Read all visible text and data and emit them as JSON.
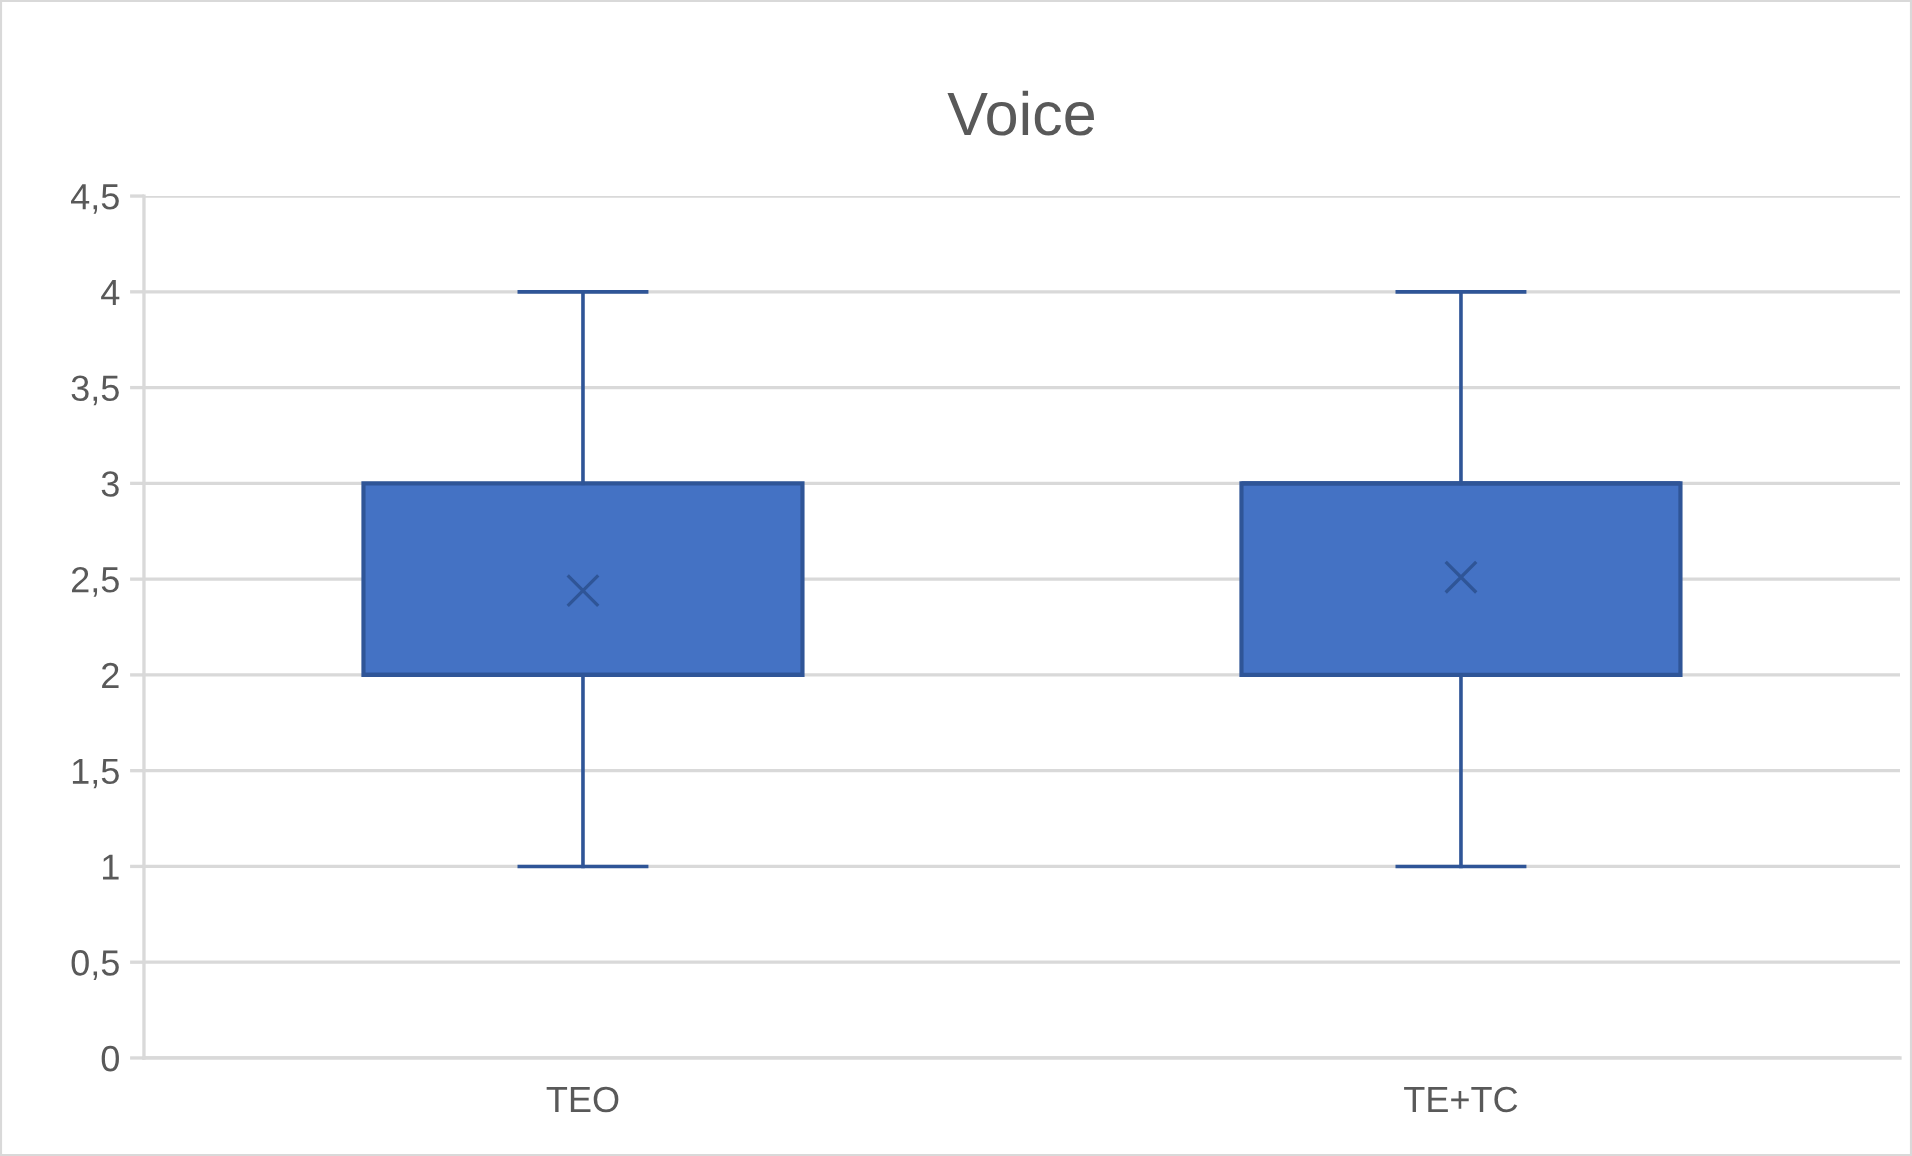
{
  "chart_data": {
    "type": "box",
    "title": "Voice",
    "categories": [
      "TEO",
      "TE+TC"
    ],
    "boxes": [
      {
        "low": 1,
        "q1": 2,
        "median": 2,
        "q3": 3,
        "high": 4,
        "mean": 2.44
      },
      {
        "low": 1,
        "q1": 2,
        "median": 3,
        "q3": 3,
        "high": 4,
        "mean": 2.51
      }
    ],
    "color": "#4472c4",
    "ylim": [
      0,
      4.5
    ],
    "yticks": [
      0,
      {
        "value": 0.5,
        "label": "0,5"
      },
      1,
      {
        "value": 1.5,
        "label": "1,5"
      },
      2,
      {
        "value": 2.5,
        "label": "2,5"
      },
      3,
      {
        "value": 3.5,
        "label": "3,5"
      },
      4,
      {
        "value": 4.5,
        "label": "4,5"
      }
    ],
    "grid": "y"
  }
}
